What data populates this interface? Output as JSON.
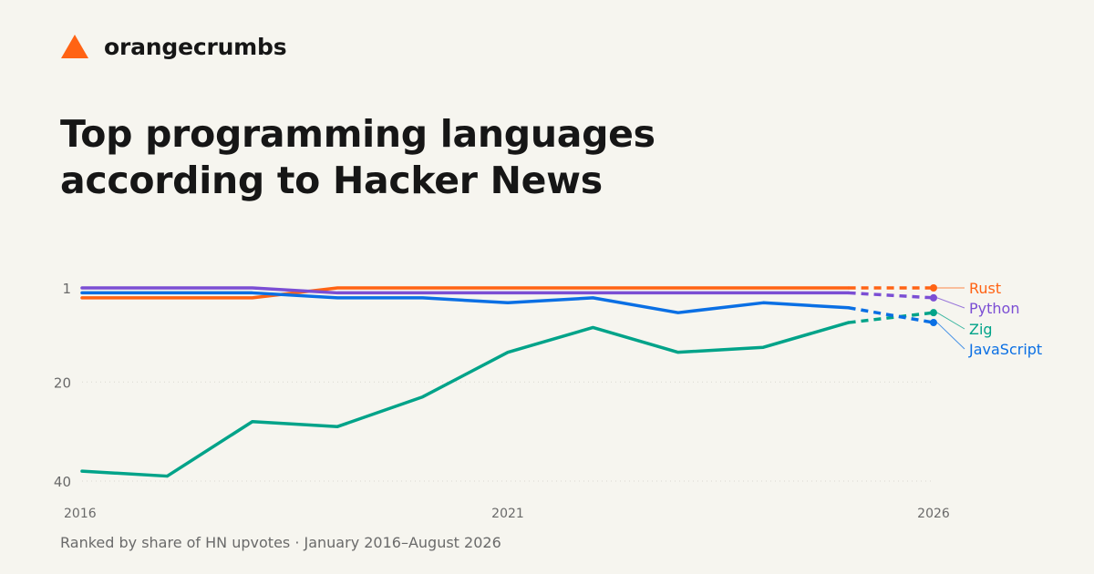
{
  "brand": {
    "name": "orangecrumbs",
    "logo_icon": "orange-triangle-icon",
    "logo_color": "#ff6314"
  },
  "title_lines": [
    "Top programming languages",
    "according to Hacker News"
  ],
  "footnote": "Ranked by share of HN upvotes · January 2016–August 2026",
  "colors": {
    "background": "#f6f5ef",
    "grid": "#d9d8d0",
    "tick_text": "#6a6a6a"
  },
  "chart_data": {
    "type": "line",
    "title": "",
    "xlabel": "",
    "ylabel": "",
    "x": [
      2016,
      2017,
      2018,
      2019,
      2020,
      2021,
      2022,
      2023,
      2024,
      2025,
      2026
    ],
    "x_ticks": [
      {
        "value": 2016,
        "label": "2016"
      },
      {
        "value": 2021,
        "label": "2021"
      },
      {
        "value": 2026,
        "label": "2026"
      }
    ],
    "y_ticks": [
      {
        "value": 1,
        "label": "1"
      },
      {
        "value": 20,
        "label": "20"
      },
      {
        "value": 40,
        "label": "40"
      }
    ],
    "xlim": [
      2016,
      2026
    ],
    "ylim": [
      1,
      40
    ],
    "y_inverted": true,
    "grid": "horizontal dotted at 20 and 40",
    "legend_placement": "right, labels beside line ends",
    "projected_segment": "2025–2026 dashed",
    "series": [
      {
        "name": "Rust",
        "color": "#ff6314",
        "values": [
          3,
          3,
          3,
          1,
          1,
          1,
          1,
          1,
          1,
          1,
          1
        ]
      },
      {
        "name": "Python",
        "color": "#7b4ed4",
        "values": [
          1,
          1,
          1,
          2,
          2,
          2,
          2,
          2,
          2,
          2,
          3
        ]
      },
      {
        "name": "Zig",
        "color": "#00a389",
        "values": [
          38,
          39,
          28,
          29,
          23,
          14,
          9,
          14,
          13,
          8,
          6
        ]
      },
      {
        "name": "JavaScript",
        "color": "#0a6fe4",
        "values": [
          2,
          2,
          2,
          3,
          3,
          4,
          3,
          6,
          4,
          5,
          8
        ]
      }
    ]
  }
}
